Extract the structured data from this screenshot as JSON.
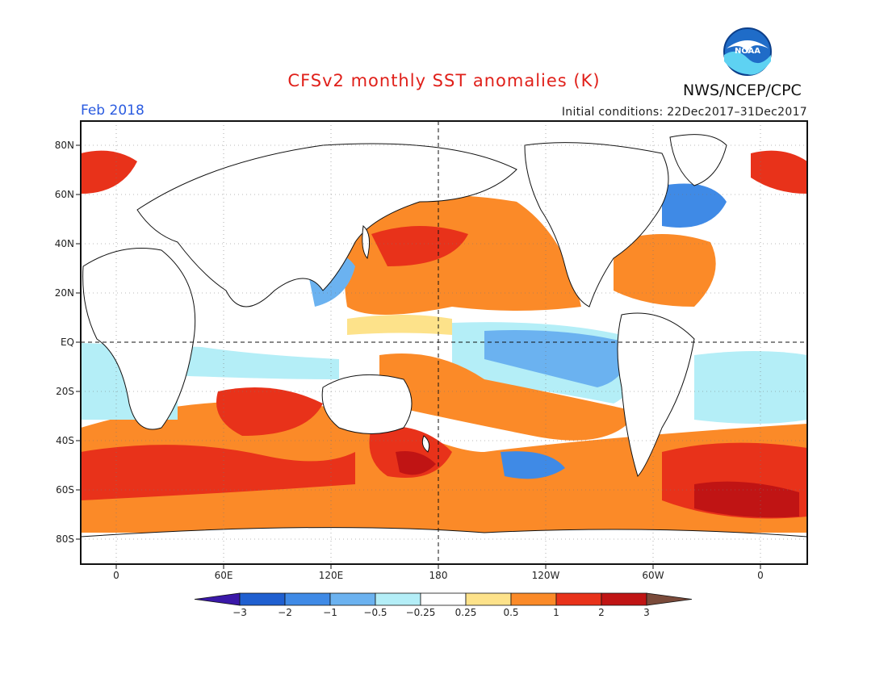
{
  "title": "CFSv2 monthly SST anomalies (K)",
  "org_credit": "NWS/NCEP/CPC",
  "logo_text": "NOAA",
  "forecast_month": "Feb 2018",
  "initial_conditions": "Initial conditions: 22Dec2017–31Dec2017",
  "map": {
    "lat_labels": [
      "80N",
      "60N",
      "40N",
      "20N",
      "EQ",
      "20S",
      "40S",
      "60S",
      "80S"
    ],
    "lon_labels": [
      "0",
      "60E",
      "120E",
      "180",
      "120W",
      "60W",
      "0"
    ],
    "reference_lines": [
      "equator",
      "dateline"
    ]
  },
  "colorbar": {
    "tick_labels": [
      "−3",
      "−2",
      "−1",
      "−0.5",
      "−0.25",
      "0.25",
      "0.5",
      "1",
      "2",
      "3"
    ],
    "colors": [
      "#3a18a8",
      "#1f5fd0",
      "#3f8ae6",
      "#6bb2f0",
      "#b4eef7",
      "#ffffff",
      "#fde28a",
      "#fb8a28",
      "#e8321a",
      "#c01414",
      "#7a4a3a"
    ]
  }
}
